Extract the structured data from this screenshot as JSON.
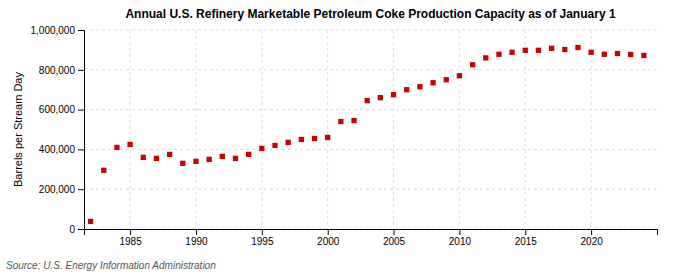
{
  "chart_data": {
    "type": "scatter",
    "title": "Annual U.S. Refinery Marketable Petroleum Coke Production Capacity as of January 1",
    "ylabel": "Barrels per Stream Day",
    "source": "Source: U.S. Energy Information Administration",
    "x": [
      1982,
      1983,
      1984,
      1985,
      1986,
      1987,
      1988,
      1989,
      1990,
      1991,
      1992,
      1993,
      1994,
      1995,
      1996,
      1997,
      1998,
      1999,
      2000,
      2001,
      2002,
      2003,
      2004,
      2005,
      2006,
      2007,
      2008,
      2009,
      2010,
      2011,
      2012,
      2013,
      2014,
      2015,
      2016,
      2017,
      2018,
      2019,
      2020,
      2021,
      2022,
      2023,
      2024
    ],
    "values": [
      38000,
      295000,
      410000,
      425000,
      360000,
      355000,
      375000,
      330000,
      340000,
      350000,
      365000,
      355000,
      375000,
      405000,
      420000,
      435000,
      450000,
      455000,
      460000,
      540000,
      545000,
      645000,
      660000,
      675000,
      700000,
      715000,
      735000,
      750000,
      770000,
      825000,
      860000,
      878000,
      888000,
      898000,
      898000,
      908000,
      902000,
      912000,
      888000,
      878000,
      882000,
      877000,
      872000
    ],
    "color": "#cc0000",
    "marker": "square",
    "grid": true,
    "xlim": [
      1981.5,
      2025
    ],
    "xticks": [
      1985,
      1990,
      1995,
      2000,
      2005,
      2010,
      2015,
      2020
    ],
    "ylim": [
      0,
      1000000
    ],
    "yticks": [
      0,
      {
        "value": 200000,
        "label": "200,000"
      },
      {
        "value": 400000,
        "label": "400,000"
      },
      {
        "value": 600000,
        "label": "600,000"
      },
      {
        "value": 800000,
        "label": "800,000"
      },
      {
        "value": 1000000,
        "label": "1,000,000"
      }
    ]
  }
}
